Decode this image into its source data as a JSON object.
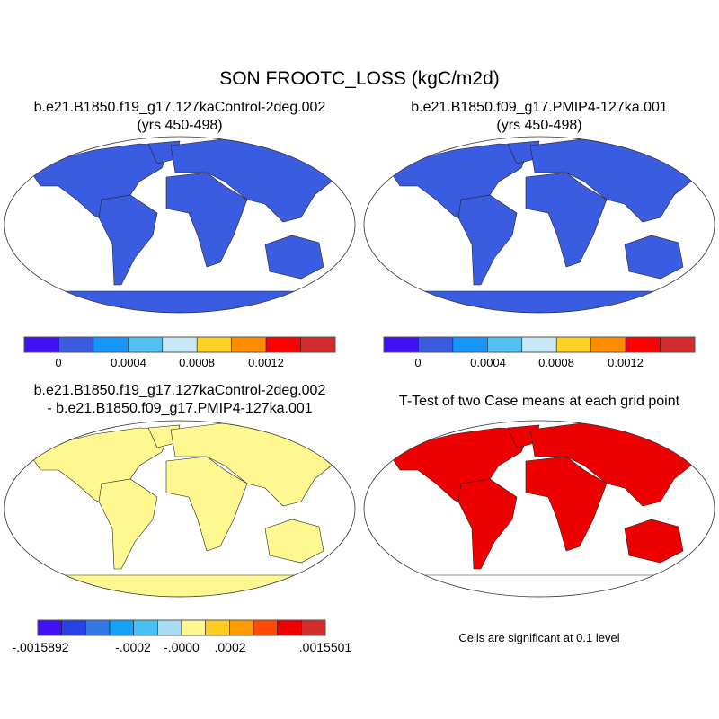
{
  "title": "SON FROOTC_LOSS (kgC/m2d)",
  "panels": [
    {
      "title_line1": "b.e21.B1850.f19_g17.127kaControl-2deg.002",
      "title_line2": "(yrs 450-498)"
    },
    {
      "title_line1": "b.e21.B1850.f09_g17.PMIP4-127ka.001",
      "title_line2": "(yrs 450-498)"
    },
    {
      "title_line1": "b.e21.B1850.f19_g17.127kaControl-2deg.002",
      "title_line2": "- b.e21.B1850.f09_g17.PMIP4-127ka.001"
    },
    {
      "title_line1": "T-Test of two Case means at each grid point",
      "footnote": "Cells are significant at 0.1 level"
    }
  ],
  "colorbar_main": {
    "colors": [
      "#4210f5",
      "#3a5ce0",
      "#1a96fa",
      "#52c0f0",
      "#c8e8f8",
      "#ffd326",
      "#ff8c00",
      "#ff0000",
      "#d42c2c"
    ],
    "labels": [
      "0",
      "0.0004",
      "0.0008",
      "0.0012"
    ]
  },
  "colorbar_diff": {
    "colors": [
      "#4210f5",
      "#2642e8",
      "#3278e8",
      "#12a2fa",
      "#48c0f2",
      "#a8dcf2",
      "#fff891",
      "#ffcc22",
      "#ff9a00",
      "#ff4a00",
      "#ee0000",
      "#d42c2c"
    ],
    "labels": [
      "-.0015892",
      "-.0002",
      "-.0000",
      ".0002",
      ".0015501"
    ]
  },
  "map_colors": {
    "land_base": "#3a5ce0",
    "diff_base": "#fff891",
    "significant": "#ee0000",
    "ocean": "#ffffff"
  }
}
